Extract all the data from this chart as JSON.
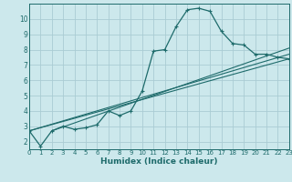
{
  "bg_color": "#cce8ec",
  "grid_color": "#aaccd4",
  "line_color": "#1e6b6b",
  "xlabel": "Humidex (Indice chaleur)",
  "xlim": [
    0,
    23
  ],
  "ylim": [
    1.5,
    11.0
  ],
  "xticks": [
    0,
    1,
    2,
    3,
    4,
    5,
    6,
    7,
    8,
    9,
    10,
    11,
    12,
    13,
    14,
    15,
    16,
    17,
    18,
    19,
    20,
    21,
    22,
    23
  ],
  "yticks": [
    2,
    3,
    4,
    5,
    6,
    7,
    8,
    9,
    10
  ],
  "series": [
    [
      0,
      2.7
    ],
    [
      1,
      1.7
    ],
    [
      2,
      2.7
    ],
    [
      3,
      3.0
    ],
    [
      4,
      2.8
    ],
    [
      5,
      2.9
    ],
    [
      6,
      3.1
    ],
    [
      7,
      4.0
    ],
    [
      8,
      3.7
    ],
    [
      9,
      4.0
    ],
    [
      10,
      5.3
    ],
    [
      11,
      7.9
    ],
    [
      12,
      8.0
    ],
    [
      13,
      9.5
    ],
    [
      14,
      10.6
    ],
    [
      15,
      10.7
    ],
    [
      16,
      10.5
    ],
    [
      17,
      9.2
    ],
    [
      18,
      8.4
    ],
    [
      19,
      8.3
    ],
    [
      20,
      7.7
    ],
    [
      21,
      7.7
    ],
    [
      22,
      7.5
    ],
    [
      23,
      7.4
    ]
  ],
  "line2": [
    [
      0,
      2.7
    ],
    [
      23,
      7.7
    ]
  ],
  "line3": [
    [
      0,
      2.7
    ],
    [
      23,
      7.4
    ]
  ],
  "line4": [
    [
      2,
      2.7
    ],
    [
      23,
      8.1
    ]
  ]
}
